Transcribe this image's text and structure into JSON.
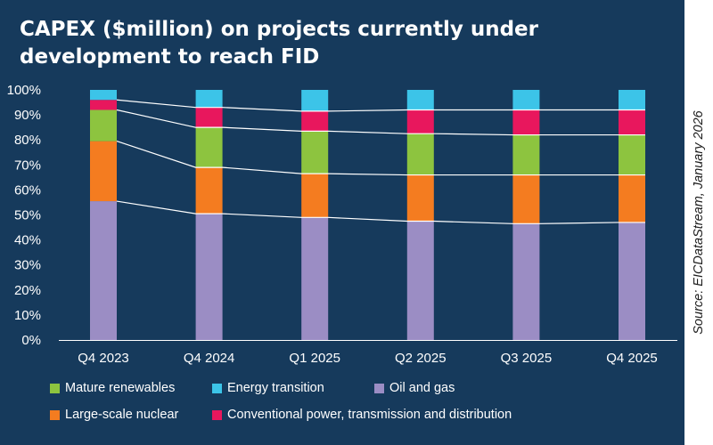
{
  "chart_data": {
    "type": "bar",
    "stacked": true,
    "title": "CAPEX ($million) on projects currently under development to reach FID",
    "categories": [
      "Q4 2023",
      "Q4 2024",
      "Q1 2025",
      "Q2 2025",
      "Q3 2025",
      "Q4 2025"
    ],
    "y_ticks": [
      "0%",
      "10%",
      "20%",
      "30%",
      "40%",
      "50%",
      "60%",
      "70%",
      "80%",
      "90%",
      "100%"
    ],
    "ylim": [
      0,
      100
    ],
    "series": [
      {
        "name": "Oil and gas",
        "color": "#9b8dc4",
        "values": [
          55.5,
          50.5,
          49,
          47.5,
          46.5,
          47
        ]
      },
      {
        "name": "Large-scale nuclear",
        "color": "#f47c20",
        "values": [
          24,
          18.5,
          17.5,
          18.5,
          19.5,
          19
        ]
      },
      {
        "name": "Mature renewables",
        "color": "#8dc43f",
        "values": [
          12.5,
          16,
          17,
          16.5,
          16,
          16
        ]
      },
      {
        "name": "Conventional power, transmission and distribution",
        "color": "#e8175d",
        "values": [
          4,
          8,
          8,
          9.5,
          10,
          10
        ]
      },
      {
        "name": "Energy transition",
        "color": "#3cc4e8",
        "values": [
          4,
          7,
          8.5,
          8,
          8,
          8
        ]
      }
    ],
    "legend": {
      "placement": "bottom",
      "row1": [
        "Mature renewables",
        "Energy transition",
        "Oil and gas"
      ],
      "row2": [
        "Large-scale nuclear",
        "Conventional power, transmission and distribution"
      ]
    },
    "source": "Source: EICDataStream, January 2026"
  }
}
